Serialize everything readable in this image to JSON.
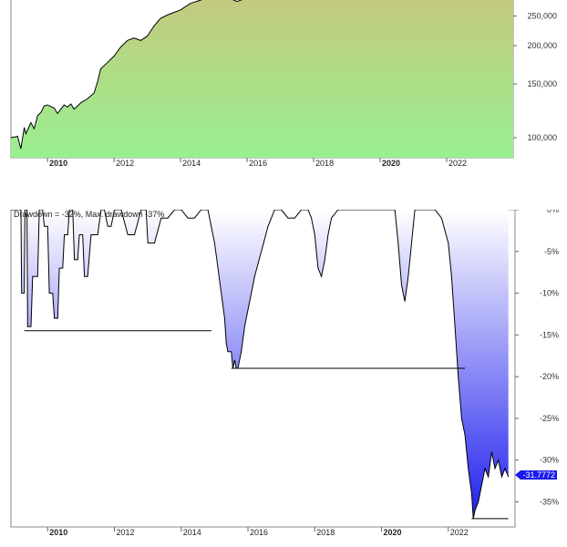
{
  "chart_data": [
    {
      "type": "area",
      "title": "",
      "x_ticks": [
        {
          "year": 2010,
          "label": "2010",
          "bold": true
        },
        {
          "year": 2012,
          "label": "2012",
          "bold": false
        },
        {
          "year": 2014,
          "label": "2014",
          "bold": false
        },
        {
          "year": 2016,
          "label": "2016",
          "bold": false
        },
        {
          "year": 2018,
          "label": "2018",
          "bold": false
        },
        {
          "year": 2020,
          "label": "2020",
          "bold": true
        },
        {
          "year": 2022,
          "label": "2022",
          "bold": false
        }
      ],
      "y_ticks": [
        {
          "value": 100000,
          "label": "100,000"
        },
        {
          "value": 150000,
          "label": "150,000"
        },
        {
          "value": 200000,
          "label": "200,000"
        },
        {
          "value": 250000,
          "label": "250,000"
        }
      ],
      "y_scale": "log",
      "xlim": [
        2008.9,
        2024.0
      ],
      "ylim": [
        86000,
        290000
      ],
      "series": [
        {
          "x": [
            2008.9,
            2009.1,
            2009.2,
            2009.3,
            2009.35,
            2009.5,
            2009.6,
            2009.7,
            2009.8,
            2009.9,
            2010.0,
            2010.2,
            2010.3,
            2010.4,
            2010.5,
            2010.6,
            2010.7,
            2010.8,
            2010.9,
            2011.0,
            2011.2,
            2011.4,
            2011.5,
            2011.6,
            2011.8,
            2012.0,
            2012.2,
            2012.4,
            2012.6,
            2012.8,
            2013.0,
            2013.2,
            2013.4,
            2013.6,
            2013.8,
            2014.0,
            2014.3,
            2014.6,
            2014.9,
            2015.1,
            2015.3,
            2015.5,
            2015.7,
            2015.9,
            2016.1,
            2016.3,
            2016.6,
            2017.0,
            2018.0,
            2019.0,
            2020.0,
            2021.0,
            2022.0,
            2022.5,
            2023.0,
            2023.5,
            2024.0
          ],
          "y": [
            100000,
            101000,
            92000,
            108000,
            103000,
            112000,
            107000,
            118000,
            121000,
            127000,
            128000,
            125000,
            120000,
            124000,
            128000,
            126000,
            129000,
            124000,
            127000,
            130000,
            134000,
            140000,
            152000,
            168000,
            176000,
            185000,
            198000,
            208000,
            212000,
            208000,
            215000,
            232000,
            246000,
            252000,
            257000,
            262000,
            275000,
            282000,
            290000,
            290000,
            290000,
            285000,
            279000,
            284000,
            290000,
            290000,
            290000,
            290000,
            290000,
            290000,
            290000,
            290000,
            290000,
            290000,
            290000,
            290000,
            290000
          ],
          "fill_top": "#c4c97e",
          "fill_bottom": "#98f090",
          "line": "#000000"
        }
      ]
    },
    {
      "type": "area",
      "title": "Drawdown = -32%, Max. drawdown -37%",
      "x_ticks": [
        {
          "year": 2010,
          "label": "2010",
          "bold": true
        },
        {
          "year": 2012,
          "label": "2012",
          "bold": false
        },
        {
          "year": 2014,
          "label": "2014",
          "bold": false
        },
        {
          "year": 2016,
          "label": "2016",
          "bold": false
        },
        {
          "year": 2018,
          "label": "2018",
          "bold": false
        },
        {
          "year": 2020,
          "label": "2020",
          "bold": true
        },
        {
          "year": 2022,
          "label": "2022",
          "bold": false
        }
      ],
      "y_ticks": [
        {
          "value": 0,
          "label": "0%"
        },
        {
          "value": -5,
          "label": "-5%"
        },
        {
          "value": -10,
          "label": "-10%"
        },
        {
          "value": -15,
          "label": "-15%"
        },
        {
          "value": -20,
          "label": "-20%"
        },
        {
          "value": -25,
          "label": "-25%"
        },
        {
          "value": -30,
          "label": "-30%"
        },
        {
          "value": -35,
          "label": "-35%"
        }
      ],
      "xlim": [
        2008.9,
        2024.0
      ],
      "ylim": [
        -38,
        0
      ],
      "series": [
        {
          "x": [
            2008.9,
            2009.2,
            2009.22,
            2009.3,
            2009.32,
            2009.38,
            2009.4,
            2009.5,
            2009.55,
            2009.7,
            2009.75,
            2009.85,
            2009.9,
            2010.0,
            2010.05,
            2010.15,
            2010.2,
            2010.3,
            2010.35,
            2010.45,
            2010.5,
            2010.6,
            2010.65,
            2010.75,
            2010.8,
            2010.9,
            2010.95,
            2011.05,
            2011.1,
            2011.2,
            2011.3,
            2011.5,
            2011.6,
            2011.7,
            2011.8,
            2011.9,
            2012.0,
            2012.2,
            2012.4,
            2012.6,
            2012.8,
            2012.95,
            2013.0,
            2013.2,
            2013.4,
            2013.6,
            2013.8,
            2014.0,
            2014.2,
            2014.4,
            2014.6,
            2014.8,
            2015.0,
            2015.1,
            2015.2,
            2015.3,
            2015.35,
            2015.4,
            2015.5,
            2015.55,
            2015.6,
            2015.65,
            2015.7,
            2015.8,
            2015.9,
            2016.0,
            2016.1,
            2016.2,
            2016.4,
            2016.6,
            2016.8,
            2017.0,
            2017.2,
            2017.4,
            2017.6,
            2017.8,
            2017.9,
            2018.0,
            2018.1,
            2018.2,
            2018.3,
            2018.4,
            2018.5,
            2018.7,
            2018.9,
            2019.0,
            2019.2,
            2019.4,
            2019.6,
            2019.8,
            2020.0,
            2020.2,
            2020.4,
            2020.5,
            2020.6,
            2020.7,
            2020.8,
            2020.9,
            2021.0,
            2021.2,
            2021.4,
            2021.6,
            2021.8,
            2022.0,
            2022.1,
            2022.2,
            2022.3,
            2022.4,
            2022.5,
            2022.55,
            2022.6,
            2022.7,
            2022.75,
            2022.8,
            2022.9,
            2023.0,
            2023.1,
            2023.2,
            2023.3,
            2023.4,
            2023.5,
            2023.6,
            2023.7,
            2023.8
          ],
          "y": [
            0,
            0,
            -10,
            -10,
            0,
            0,
            -14,
            -14,
            -8,
            -8,
            0,
            0,
            -2,
            -2,
            -10,
            -10,
            -13,
            -13,
            -7,
            -7,
            -3,
            -3,
            0,
            0,
            -6,
            -6,
            -3,
            -3,
            -8,
            -8,
            -3,
            -3,
            0,
            0,
            -2,
            -2,
            0,
            0,
            -3,
            -3,
            0,
            0,
            -4,
            -4,
            -1,
            -1,
            0,
            0,
            -1,
            -1,
            0,
            0,
            -4,
            -7,
            -10,
            -13,
            -16,
            -17,
            -17,
            -19,
            -18,
            -19,
            -19,
            -17,
            -14,
            -12,
            -10,
            -8,
            -5,
            -2,
            0,
            0,
            -1,
            -1,
            0,
            0,
            -1,
            -3,
            -7,
            -8,
            -6,
            -3,
            -1,
            0,
            0,
            0,
            0,
            0,
            0,
            0,
            0,
            0,
            0,
            -4,
            -9,
            -11,
            -8,
            -4,
            0,
            0,
            0,
            0,
            -1,
            -4,
            -8,
            -14,
            -20,
            -25,
            -27,
            -29,
            -31,
            -34,
            -37,
            -36,
            -35,
            -33,
            -31,
            -32,
            -29,
            -31,
            -30,
            -32,
            -31,
            -32
          ],
          "fill_top": "#ffffff",
          "fill_bottom": "#2020ee",
          "line": "#000000"
        }
      ],
      "max_drawdown_markers": [
        {
          "x_start": 2009.3,
          "x_end": 2014.9,
          "value": -14.5
        },
        {
          "x_start": 2015.5,
          "x_end": 2022.5,
          "value": -19
        },
        {
          "x_start": 2022.7,
          "x_end": 2023.8,
          "value": -37
        }
      ],
      "last_value_label": "-31.7772",
      "last_value_color": "#1a1aee"
    }
  ]
}
